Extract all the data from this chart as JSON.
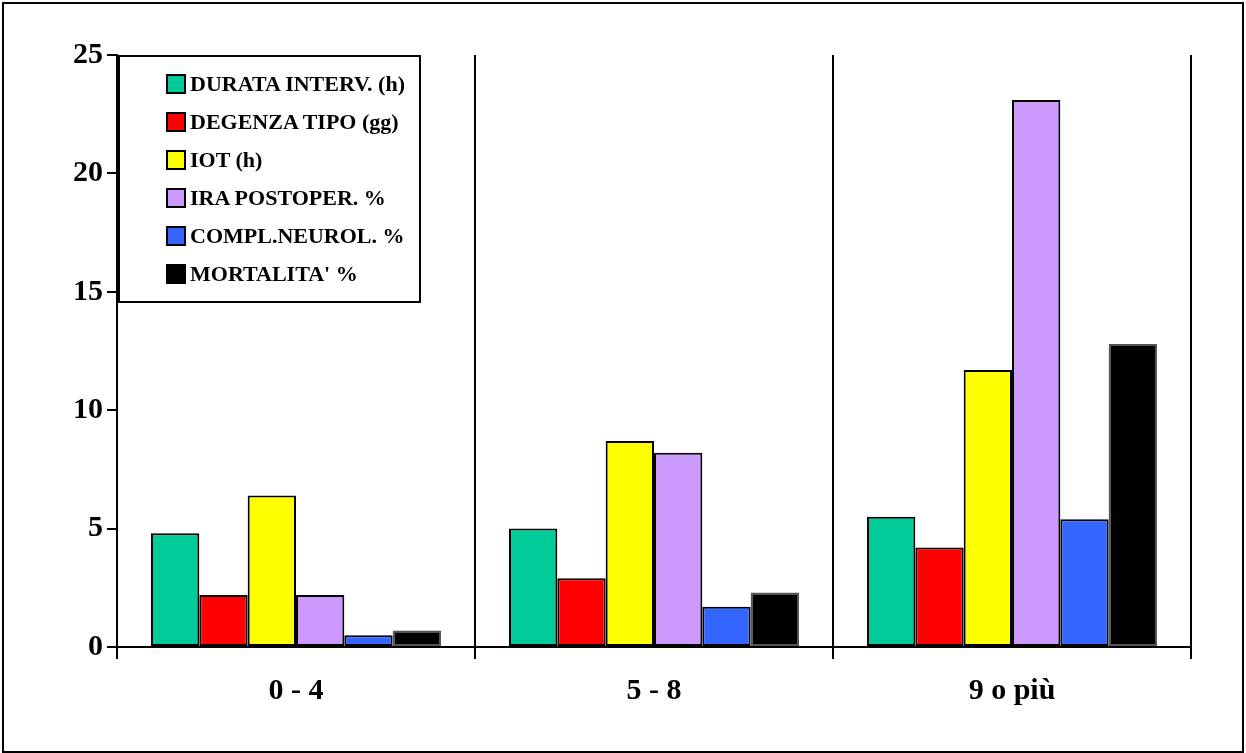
{
  "chart_data": {
    "type": "bar",
    "categories": [
      "0 - 4",
      "5 - 8",
      "9 o più"
    ],
    "series": [
      {
        "name": "DURATA INTERV. (h)",
        "color": "#00cc99",
        "values": [
          4.8,
          5.0,
          5.5
        ]
      },
      {
        "name": "DEGENZA TIPO (gg)",
        "color": "#ff0000",
        "values": [
          2.2,
          2.9,
          4.2
        ]
      },
      {
        "name": "IOT (h)",
        "color": "#ffff00",
        "values": [
          6.4,
          8.7,
          11.7
        ]
      },
      {
        "name": "IRA POSTOPER. %",
        "color": "#cc99ff",
        "values": [
          2.2,
          8.2,
          23.1
        ]
      },
      {
        "name": "COMPL.NEUROL. %",
        "color": "#3366ff",
        "values": [
          0.5,
          1.7,
          5.4
        ]
      },
      {
        "name": "MORTALITA' %",
        "color": "#000000",
        "values": [
          0.7,
          2.3,
          12.8
        ]
      }
    ],
    "ylim": [
      0,
      25
    ],
    "yticks": [
      0,
      5,
      10,
      15,
      20,
      25
    ],
    "grid": "x",
    "legend": "top left"
  }
}
